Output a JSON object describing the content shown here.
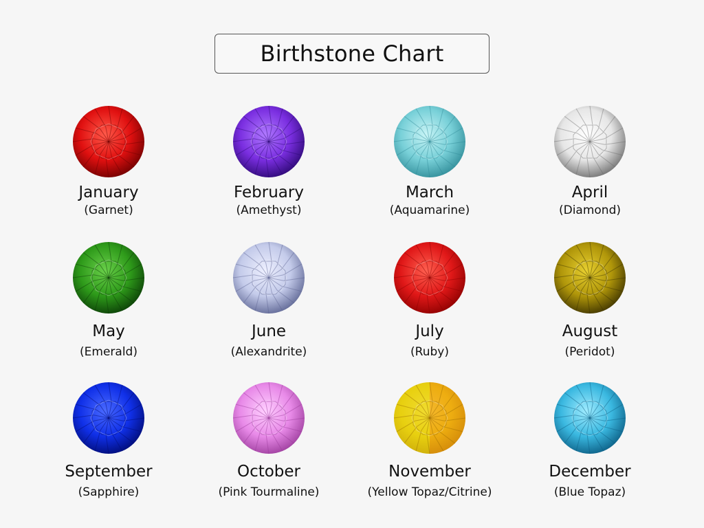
{
  "title": "Birthstone Chart",
  "stones": [
    {
      "month": "January",
      "stone": "(Garnet)",
      "color": "#e01010",
      "dark": "#6a0000",
      "light": "#ff5a4a"
    },
    {
      "month": "February",
      "stone": "(Amethyst)",
      "color": "#7a2ee0",
      "dark": "#2a0870",
      "light": "#b07aff"
    },
    {
      "month": "March",
      "stone": "(Aquamarine)",
      "color": "#78d0d8",
      "dark": "#2e8a96",
      "light": "#c8f4f6"
    },
    {
      "month": "April",
      "stone": "(Diamond)",
      "color": "#e6e6e6",
      "dark": "#6a6a6a",
      "light": "#ffffff"
    },
    {
      "month": "May",
      "stone": "(Emerald)",
      "color": "#2e9a1a",
      "dark": "#0a3a06",
      "light": "#6ad04a"
    },
    {
      "month": "June",
      "stone": "(Alexandrite)",
      "color": "#c4cbea",
      "dark": "#5a6290",
      "light": "#eef0ff"
    },
    {
      "month": "July",
      "stone": "(Ruby)",
      "color": "#e01818",
      "dark": "#8a0000",
      "light": "#ff6050"
    },
    {
      "month": "August",
      "stone": "(Peridot)",
      "color": "#b0960a",
      "dark": "#3a3000",
      "light": "#e8d030"
    },
    {
      "month": "September",
      "stone": "(Sapphire)",
      "color": "#1030e8",
      "dark": "#000a70",
      "light": "#4a6aff"
    },
    {
      "month": "October",
      "stone": "(Pink Tourmaline)",
      "color": "#e88ae8",
      "dark": "#9a3a9a",
      "light": "#ffd0ff"
    },
    {
      "month": "November",
      "stone": "(Yellow Topaz/Citrine)",
      "color": "#e8d010",
      "dark": "#9a6a00",
      "light": "#fff06a",
      "color2": "#f09a10"
    },
    {
      "month": "December",
      "stone": "(Blue Topaz)",
      "color": "#3ab8e0",
      "dark": "#0a5a80",
      "light": "#a0ecff"
    }
  ]
}
